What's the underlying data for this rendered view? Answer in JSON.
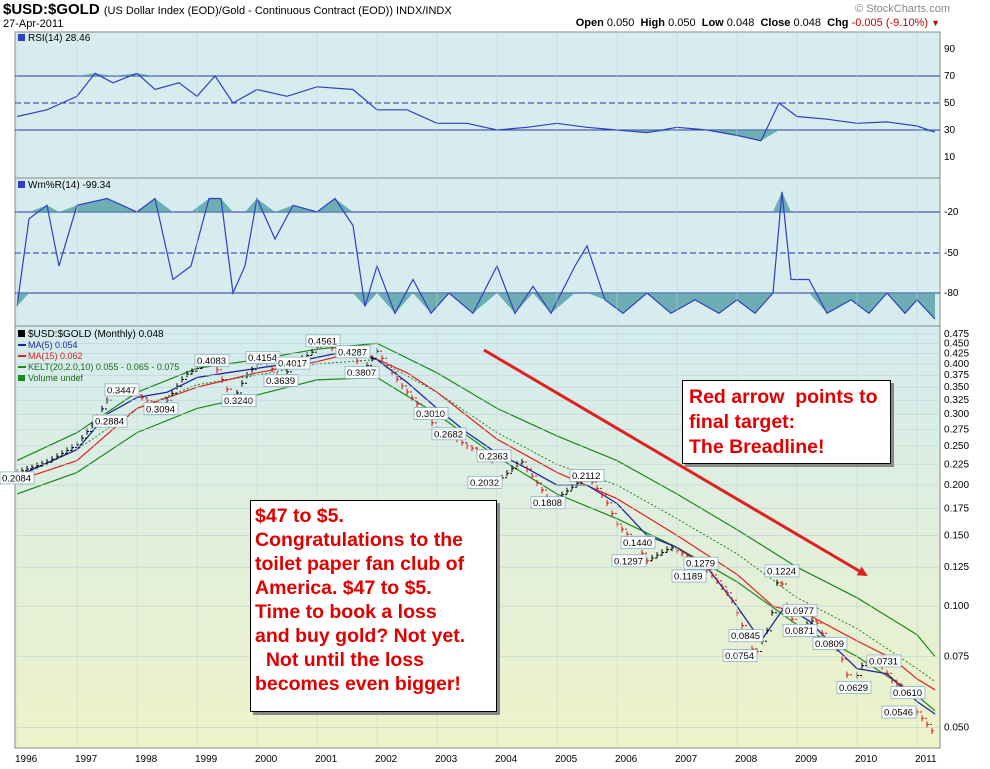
{
  "header": {
    "symbol": "$USD:$GOLD",
    "description": "(US Dollar Index (EOD)/Gold - Continuous Contract (EOD)) INDX/INDX",
    "date": "27-Apr-2011",
    "brand": "© StockCharts.com",
    "open_label": "Open",
    "open": "0.050",
    "high_label": "High",
    "high": "0.050",
    "low_label": "Low",
    "low": "0.048",
    "close_label": "Close",
    "close": "0.048",
    "chg_label": "Chg",
    "chg": "-0.005 (-9.10%)"
  },
  "colors": {
    "panel_bg": "#d6ecee",
    "price_bg_top": "#d8eef0",
    "price_bg_bottom": "#ecf2cc",
    "indicator_line": "#3040c0",
    "fill": "#4a9aa0",
    "ma5": "#1c2a9a",
    "ma15": "#e02020",
    "kelt": "#1a8a1a",
    "annotation": "#e00000",
    "arrow": "#e02020"
  },
  "rsi_panel": {
    "label": "RSI(14) 28.46",
    "ticks": [
      "90",
      "70",
      "50",
      "30",
      "10"
    ]
  },
  "wr_panel": {
    "label": "Wm%R(14) -99.34",
    "ticks": [
      "-20",
      "-50",
      "-80"
    ]
  },
  "legend": {
    "main": "$USD:$GOLD (Monthly) 0.048",
    "ma5": "MA(5) 0.054",
    "ma15": "MA(15) 0.062",
    "kelt": "KELT(20,2.0,10) 0.055 - 0.065 - 0.075",
    "volume": "Volume undef"
  },
  "annotations": {
    "box1": [
      "$47 to $5.",
      "Congratulations to the",
      "toilet paper fan club of",
      "America.  $47 to $5.",
      "Time to book a loss",
      "and buy gold?  Not yet.",
      "  Not until the loss",
      "becomes even bigger!"
    ],
    "box2": [
      "Red arrow  points to",
      "final target:",
      "The Breadline!"
    ]
  },
  "chart_data": {
    "type": "line",
    "title": "$USD:$GOLD (US Dollar Index (EOD)/Gold - Continuous Contract (EOD))",
    "y_scale": "log",
    "ylim": [
      0.046,
      0.48
    ],
    "xlim": [
      1996.0,
      2011.35
    ],
    "y_ticks": [
      "0.475",
      "0.450",
      "0.425",
      "0.400",
      "0.375",
      "0.350",
      "0.325",
      "0.300",
      "0.275",
      "0.250",
      "0.225",
      "0.200",
      "0.175",
      "0.150",
      "0.125",
      "0.100",
      "0.075",
      "0.050"
    ],
    "x_ticks": [
      "1996",
      "1997",
      "1998",
      "1999",
      "2000",
      "2001",
      "2002",
      "2003",
      "2004",
      "2005",
      "2006",
      "2007",
      "2008",
      "2009",
      "2010",
      "2011"
    ],
    "price_points": [
      [
        1996.0,
        0.215
      ],
      [
        1996.5,
        0.228
      ],
      [
        1997.0,
        0.252
      ],
      [
        1997.3,
        0.2884
      ],
      [
        1997.6,
        0.3447
      ],
      [
        1998.0,
        0.335
      ],
      [
        1998.4,
        0.3094
      ],
      [
        1998.8,
        0.375
      ],
      [
        1999.25,
        0.4083
      ],
      [
        1999.6,
        0.324
      ],
      [
        1999.8,
        0.37
      ],
      [
        2000.1,
        0.4154
      ],
      [
        2000.4,
        0.3639
      ],
      [
        2000.6,
        0.4017
      ],
      [
        2000.9,
        0.425
      ],
      [
        2001.1,
        0.4561
      ],
      [
        2001.4,
        0.42
      ],
      [
        2001.6,
        0.4287
      ],
      [
        2001.75,
        0.3807
      ],
      [
        2002.0,
        0.43
      ],
      [
        2002.4,
        0.355
      ],
      [
        2002.8,
        0.301
      ],
      [
        2003.0,
        0.275
      ],
      [
        2003.2,
        0.2682
      ],
      [
        2003.5,
        0.25
      ],
      [
        2003.9,
        0.2363
      ],
      [
        2004.0,
        0.2032
      ],
      [
        2004.4,
        0.23
      ],
      [
        2004.9,
        0.1808
      ],
      [
        2005.2,
        0.195
      ],
      [
        2005.5,
        0.2112
      ],
      [
        2005.8,
        0.185
      ],
      [
        2006.0,
        0.16
      ],
      [
        2006.3,
        0.144
      ],
      [
        2006.5,
        0.1297
      ],
      [
        2006.9,
        0.14
      ],
      [
        2007.4,
        0.1279
      ],
      [
        2007.6,
        0.1189
      ],
      [
        2007.9,
        0.105
      ],
      [
        2008.15,
        0.0845
      ],
      [
        2008.3,
        0.0754
      ],
      [
        2008.55,
        0.09
      ],
      [
        2008.7,
        0.1224
      ],
      [
        2008.85,
        0.0977
      ],
      [
        2009.0,
        0.0871
      ],
      [
        2009.3,
        0.0929
      ],
      [
        2009.5,
        0.0809
      ],
      [
        2009.7,
        0.078
      ],
      [
        2009.9,
        0.0629
      ],
      [
        2010.1,
        0.072
      ],
      [
        2010.35,
        0.0731
      ],
      [
        2010.6,
        0.065
      ],
      [
        2010.9,
        0.061
      ],
      [
        2011.0,
        0.0546
      ],
      [
        2011.3,
        0.048
      ]
    ],
    "ma5": [
      [
        1996.0,
        0.21
      ],
      [
        1997.0,
        0.245
      ],
      [
        1997.5,
        0.3
      ],
      [
        1998.0,
        0.33
      ],
      [
        1998.5,
        0.34
      ],
      [
        1999.0,
        0.37
      ],
      [
        1999.5,
        0.38
      ],
      [
        2000.0,
        0.39
      ],
      [
        2000.5,
        0.4
      ],
      [
        2001.0,
        0.415
      ],
      [
        2001.5,
        0.43
      ],
      [
        2002.0,
        0.41
      ],
      [
        2002.5,
        0.36
      ],
      [
        2003.0,
        0.31
      ],
      [
        2003.5,
        0.27
      ],
      [
        2004.0,
        0.24
      ],
      [
        2004.5,
        0.22
      ],
      [
        2005.0,
        0.2
      ],
      [
        2005.5,
        0.2
      ],
      [
        2006.0,
        0.18
      ],
      [
        2006.5,
        0.15
      ],
      [
        2007.0,
        0.14
      ],
      [
        2007.5,
        0.125
      ],
      [
        2008.0,
        0.1
      ],
      [
        2008.4,
        0.082
      ],
      [
        2008.8,
        0.1
      ],
      [
        2009.2,
        0.092
      ],
      [
        2009.6,
        0.08
      ],
      [
        2010.0,
        0.07
      ],
      [
        2010.5,
        0.068
      ],
      [
        2011.0,
        0.058
      ],
      [
        2011.3,
        0.054
      ]
    ],
    "ma15": [
      [
        1996.0,
        0.205
      ],
      [
        1997.0,
        0.23
      ],
      [
        1998.0,
        0.31
      ],
      [
        1999.0,
        0.35
      ],
      [
        2000.0,
        0.38
      ],
      [
        2001.0,
        0.405
      ],
      [
        2001.7,
        0.43
      ],
      [
        2002.5,
        0.38
      ],
      [
        2003.0,
        0.34
      ],
      [
        2004.0,
        0.26
      ],
      [
        2005.0,
        0.215
      ],
      [
        2006.0,
        0.185
      ],
      [
        2007.0,
        0.15
      ],
      [
        2008.0,
        0.12
      ],
      [
        2008.6,
        0.1
      ],
      [
        2009.2,
        0.095
      ],
      [
        2010.0,
        0.082
      ],
      [
        2010.6,
        0.074
      ],
      [
        2011.0,
        0.066
      ],
      [
        2011.3,
        0.062
      ]
    ],
    "kelt_upper": [
      [
        1996.0,
        0.23
      ],
      [
        1997.0,
        0.27
      ],
      [
        1998.0,
        0.34
      ],
      [
        1999.0,
        0.39
      ],
      [
        2000.0,
        0.41
      ],
      [
        2001.0,
        0.435
      ],
      [
        2002.0,
        0.45
      ],
      [
        2003.0,
        0.38
      ],
      [
        2004.0,
        0.31
      ],
      [
        2005.0,
        0.265
      ],
      [
        2006.0,
        0.23
      ],
      [
        2007.0,
        0.19
      ],
      [
        2008.0,
        0.155
      ],
      [
        2009.0,
        0.125
      ],
      [
        2010.0,
        0.105
      ],
      [
        2011.0,
        0.085
      ],
      [
        2011.3,
        0.075
      ]
    ],
    "kelt_middle": [
      [
        1996.0,
        0.21
      ],
      [
        1997.0,
        0.245
      ],
      [
        1998.0,
        0.31
      ],
      [
        1999.0,
        0.355
      ],
      [
        2000.0,
        0.375
      ],
      [
        2001.0,
        0.4
      ],
      [
        2002.0,
        0.41
      ],
      [
        2003.0,
        0.34
      ],
      [
        2004.0,
        0.27
      ],
      [
        2005.0,
        0.225
      ],
      [
        2006.0,
        0.2
      ],
      [
        2007.0,
        0.165
      ],
      [
        2008.0,
        0.135
      ],
      [
        2009.0,
        0.105
      ],
      [
        2010.0,
        0.088
      ],
      [
        2011.0,
        0.07
      ],
      [
        2011.3,
        0.065
      ]
    ],
    "kelt_lower": [
      [
        1996.0,
        0.19
      ],
      [
        1997.0,
        0.215
      ],
      [
        1998.0,
        0.27
      ],
      [
        1999.0,
        0.31
      ],
      [
        2000.0,
        0.335
      ],
      [
        2001.0,
        0.365
      ],
      [
        2002.0,
        0.37
      ],
      [
        2003.0,
        0.3
      ],
      [
        2004.0,
        0.235
      ],
      [
        2005.0,
        0.19
      ],
      [
        2006.0,
        0.165
      ],
      [
        2007.0,
        0.14
      ],
      [
        2008.0,
        0.115
      ],
      [
        2009.0,
        0.09
      ],
      [
        2010.0,
        0.075
      ],
      [
        2011.0,
        0.06
      ],
      [
        2011.3,
        0.055
      ]
    ],
    "labels": [
      {
        "x": 1996.0,
        "y": 0.2084,
        "text": "0.2084"
      },
      {
        "x": 1997.55,
        "y": 0.2884,
        "text": "0.2884"
      },
      {
        "x": 1997.75,
        "y": 0.3447,
        "text": "0.3447"
      },
      {
        "x": 1998.4,
        "y": 0.3094,
        "text": "0.3094"
      },
      {
        "x": 1999.25,
        "y": 0.4083,
        "text": "0.4083"
      },
      {
        "x": 1999.7,
        "y": 0.324,
        "text": "0.3240"
      },
      {
        "x": 2000.1,
        "y": 0.4154,
        "text": "0.4154"
      },
      {
        "x": 2000.4,
        "y": 0.3639,
        "text": "0.3639"
      },
      {
        "x": 2000.6,
        "y": 0.4017,
        "text": "0.4017"
      },
      {
        "x": 2001.1,
        "y": 0.4561,
        "text": "0.4561"
      },
      {
        "x": 2001.6,
        "y": 0.4287,
        "text": "0.4287"
      },
      {
        "x": 2001.75,
        "y": 0.3807,
        "text": "0.3807"
      },
      {
        "x": 2002.9,
        "y": 0.301,
        "text": "0.3010"
      },
      {
        "x": 2003.2,
        "y": 0.2682,
        "text": "0.2682"
      },
      {
        "x": 2003.95,
        "y": 0.2363,
        "text": "0.2363"
      },
      {
        "x": 2003.8,
        "y": 0.2032,
        "text": "0.2032"
      },
      {
        "x": 2004.85,
        "y": 0.1808,
        "text": "0.1808"
      },
      {
        "x": 2005.5,
        "y": 0.2112,
        "text": "0.2112"
      },
      {
        "x": 2006.35,
        "y": 0.144,
        "text": "0.1440"
      },
      {
        "x": 2006.2,
        "y": 0.1297,
        "text": "0.1297"
      },
      {
        "x": 2007.4,
        "y": 0.1279,
        "text": "0.1279"
      },
      {
        "x": 2007.2,
        "y": 0.1189,
        "text": "0.1189"
      },
      {
        "x": 2008.15,
        "y": 0.0845,
        "text": "0.0845"
      },
      {
        "x": 2008.05,
        "y": 0.0754,
        "text": "0.0754"
      },
      {
        "x": 2008.75,
        "y": 0.1224,
        "text": "0.1224"
      },
      {
        "x": 2009.05,
        "y": 0.0977,
        "text": "0.0977"
      },
      {
        "x": 2009.05,
        "y": 0.0871,
        "text": "0.0871"
      },
      {
        "x": 2009.55,
        "y": 0.0809,
        "text": "0.0809"
      },
      {
        "x": 2010.45,
        "y": 0.0731,
        "text": "0.0731"
      },
      {
        "x": 2009.95,
        "y": 0.0629,
        "text": "0.0629"
      },
      {
        "x": 2010.85,
        "y": 0.061,
        "text": "0.0610"
      },
      {
        "x": 2010.7,
        "y": 0.0546,
        "text": "0.0546"
      }
    ],
    "rsi": [
      [
        1996.0,
        40
      ],
      [
        1996.5,
        45
      ],
      [
        1997.0,
        55
      ],
      [
        1997.3,
        72
      ],
      [
        1997.6,
        65
      ],
      [
        1998.0,
        72
      ],
      [
        1998.3,
        60
      ],
      [
        1998.7,
        65
      ],
      [
        1999.0,
        55
      ],
      [
        1999.3,
        70
      ],
      [
        1999.6,
        50
      ],
      [
        2000.0,
        60
      ],
      [
        2000.5,
        55
      ],
      [
        2001.0,
        62
      ],
      [
        2001.6,
        60
      ],
      [
        2002.0,
        45
      ],
      [
        2002.5,
        45
      ],
      [
        2003.0,
        35
      ],
      [
        2003.5,
        35
      ],
      [
        2004.0,
        30
      ],
      [
        2004.5,
        32
      ],
      [
        2005.0,
        35
      ],
      [
        2005.5,
        32
      ],
      [
        2006.0,
        30
      ],
      [
        2006.5,
        28
      ],
      [
        2007.0,
        32
      ],
      [
        2007.5,
        30
      ],
      [
        2008.0,
        26
      ],
      [
        2008.4,
        22
      ],
      [
        2008.7,
        50
      ],
      [
        2009.0,
        40
      ],
      [
        2009.5,
        38
      ],
      [
        2010.0,
        35
      ],
      [
        2010.5,
        36
      ],
      [
        2011.0,
        33
      ],
      [
        2011.3,
        28.46
      ]
    ],
    "williams_r": [
      [
        1996.0,
        -90
      ],
      [
        1996.2,
        -25
      ],
      [
        1996.5,
        -15
      ],
      [
        1996.7,
        -60
      ],
      [
        1997.0,
        -15
      ],
      [
        1997.5,
        -10
      ],
      [
        1998.0,
        -20
      ],
      [
        1998.3,
        -10
      ],
      [
        1998.6,
        -70
      ],
      [
        1998.9,
        -60
      ],
      [
        1999.2,
        -10
      ],
      [
        1999.4,
        -10
      ],
      [
        1999.6,
        -80
      ],
      [
        1999.8,
        -60
      ],
      [
        2000.0,
        -10
      ],
      [
        2000.3,
        -40
      ],
      [
        2000.6,
        -15
      ],
      [
        2001.0,
        -20
      ],
      [
        2001.3,
        -10
      ],
      [
        2001.6,
        -30
      ],
      [
        2001.8,
        -90
      ],
      [
        2002.0,
        -60
      ],
      [
        2002.3,
        -95
      ],
      [
        2002.6,
        -70
      ],
      [
        2002.9,
        -95
      ],
      [
        2003.2,
        -80
      ],
      [
        2003.6,
        -95
      ],
      [
        2004.0,
        -60
      ],
      [
        2004.3,
        -95
      ],
      [
        2004.6,
        -75
      ],
      [
        2004.9,
        -95
      ],
      [
        2005.3,
        -60
      ],
      [
        2005.5,
        -45
      ],
      [
        2005.8,
        -85
      ],
      [
        2006.1,
        -95
      ],
      [
        2006.5,
        -80
      ],
      [
        2006.9,
        -95
      ],
      [
        2007.3,
        -85
      ],
      [
        2007.7,
        -95
      ],
      [
        2008.0,
        -85
      ],
      [
        2008.3,
        -95
      ],
      [
        2008.6,
        -80
      ],
      [
        2008.75,
        -5
      ],
      [
        2008.9,
        -70
      ],
      [
        2009.2,
        -70
      ],
      [
        2009.5,
        -95
      ],
      [
        2009.9,
        -85
      ],
      [
        2010.2,
        -95
      ],
      [
        2010.5,
        -80
      ],
      [
        2010.8,
        -95
      ],
      [
        2011.0,
        -85
      ],
      [
        2011.3,
        -99.34
      ]
    ]
  }
}
